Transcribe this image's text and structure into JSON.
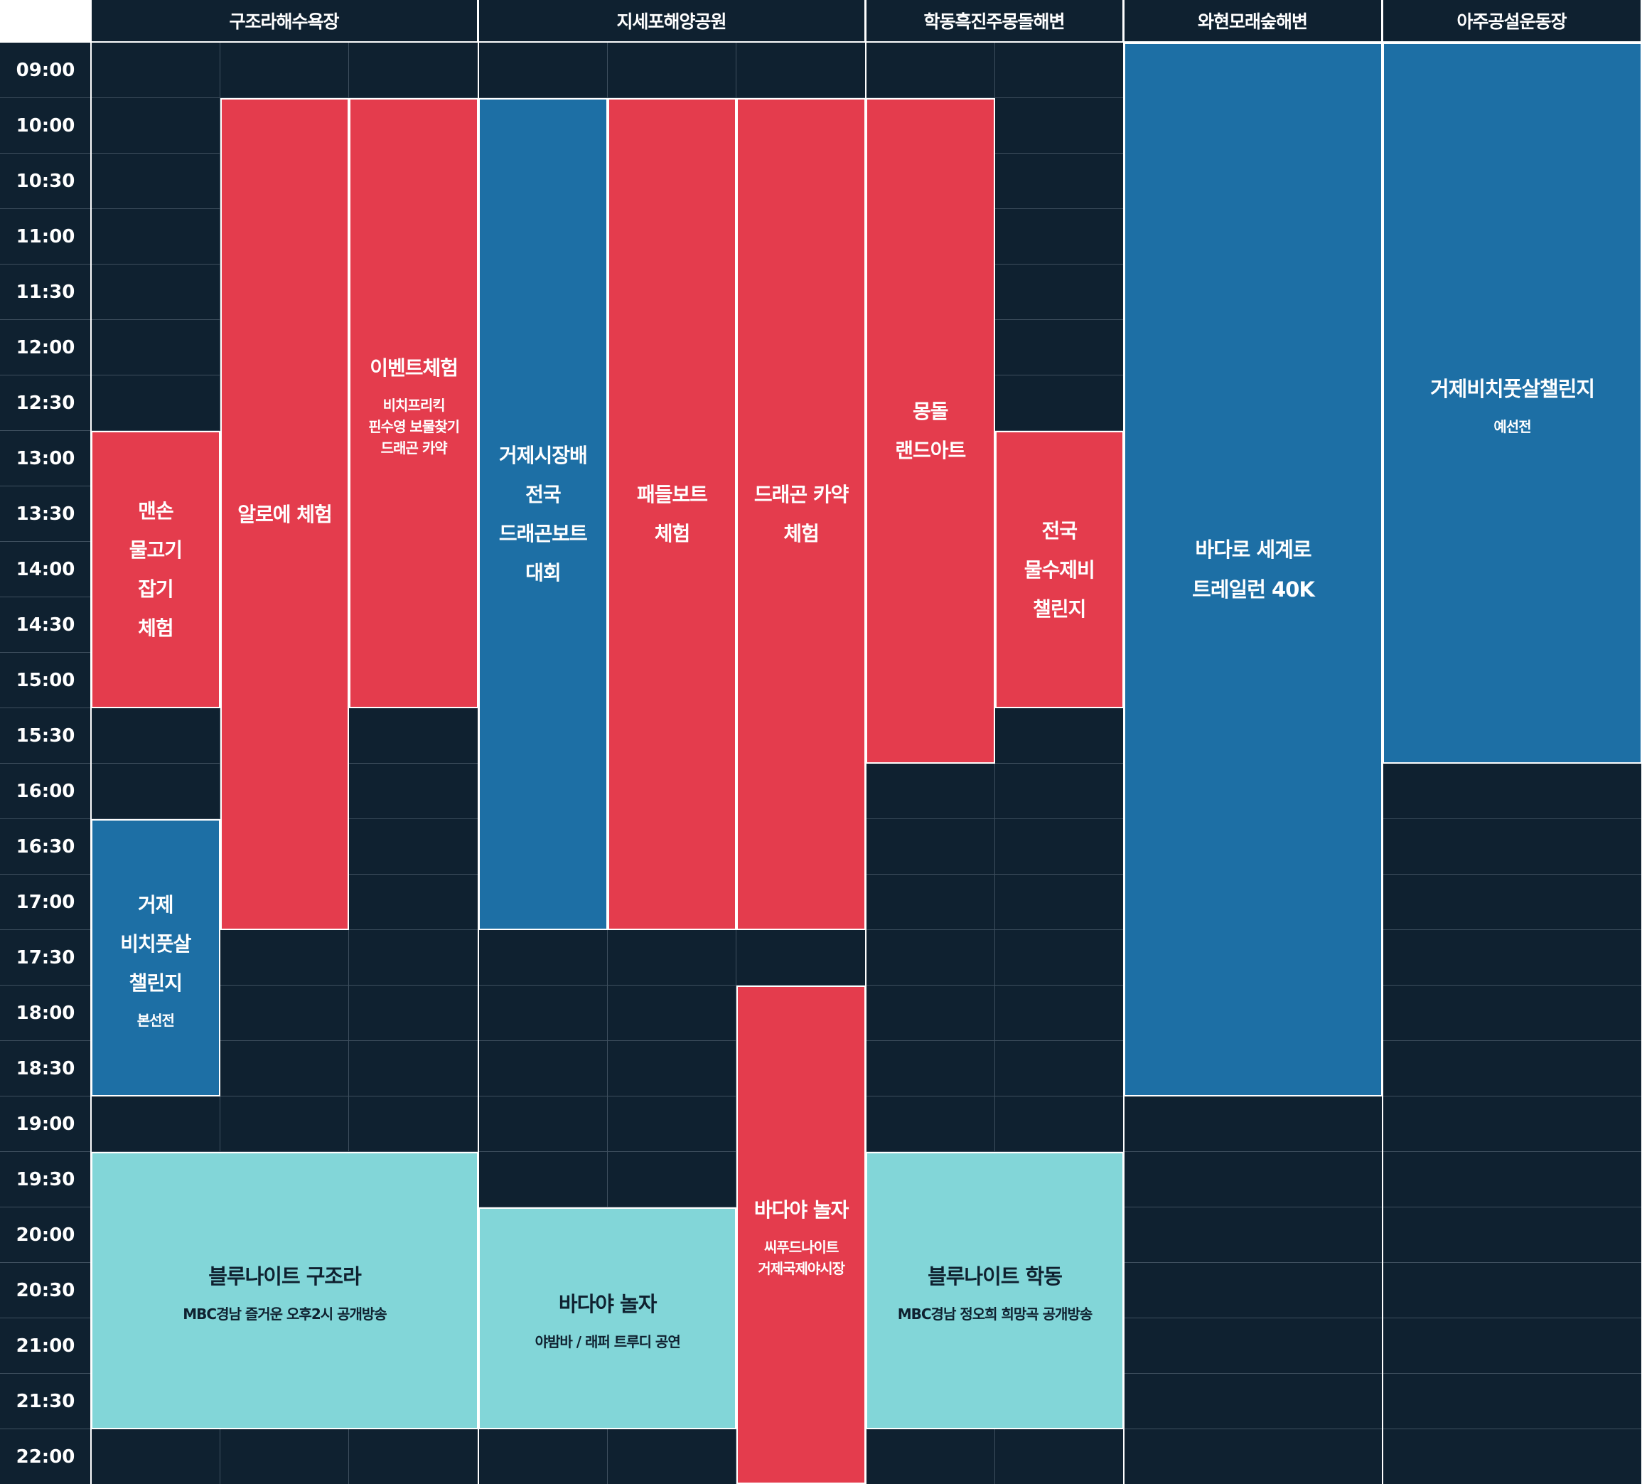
{
  "venues": [
    {
      "id": "v1",
      "name": "구조라해수욕장"
    },
    {
      "id": "v2",
      "name": "지세포해양공원"
    },
    {
      "id": "v3",
      "name": "학동흑진주몽돌해변"
    },
    {
      "id": "v4",
      "name": "와현모래숲해변"
    },
    {
      "id": "v5",
      "name": "아주공설운동장"
    }
  ],
  "times": [
    "09:00",
    "10:00",
    "10:30",
    "11:00",
    "11:30",
    "12:00",
    "12:30",
    "13:00",
    "13:30",
    "14:00",
    "14:30",
    "15:00",
    "15:30",
    "16:00",
    "16:30",
    "17:00",
    "17:30",
    "18:00",
    "18:30",
    "19:00",
    "19:30",
    "20:00",
    "20:30",
    "21:00",
    "21:30",
    "22:00"
  ],
  "events": [
    {
      "id": "e1",
      "title": "맨손\n물고기\n잡기\n체험",
      "subtitle": "",
      "color": "red",
      "venue": "구조라해수욕장",
      "start": "13:00",
      "end": "15:30"
    },
    {
      "id": "e2",
      "title": "알로에 체험",
      "subtitle": "",
      "color": "red",
      "venue": "구조라해수욕장",
      "start": "10:00",
      "end": "17:30"
    },
    {
      "id": "e3",
      "title": "이벤트체험",
      "subtitle": "비치프리킥\n핀수영 보물찾기\n드래곤 카약",
      "color": "red",
      "venue": "구조라해수욕장",
      "start": "10:00",
      "end": "15:30"
    },
    {
      "id": "e4",
      "title": "거제\n비치풋살\n챌린지",
      "subtitle": "본선전",
      "color": "blue",
      "venue": "구조라해수욕장",
      "start": "16:30",
      "end": "19:00"
    },
    {
      "id": "e5",
      "title": "블루나이트 구조라",
      "subtitle": "MBC경남 즐거운 오후2시 공개방송",
      "color": "cyan",
      "venue": "구조라해수욕장",
      "start": "19:30",
      "end": "22:00"
    },
    {
      "id": "e6",
      "title": "거제시장배\n전국\n드래곤보트\n대회",
      "subtitle": "",
      "color": "blue",
      "venue": "지세포해양공원",
      "start": "10:00",
      "end": "17:30"
    },
    {
      "id": "e7",
      "title": "패들보트\n체험",
      "subtitle": "",
      "color": "red",
      "venue": "지세포해양공원",
      "start": "10:00",
      "end": "17:30"
    },
    {
      "id": "e8",
      "title": "드래곤 카약\n체험",
      "subtitle": "",
      "color": "red",
      "venue": "지세포해양공원",
      "start": "10:00",
      "end": "17:30"
    },
    {
      "id": "e9",
      "title": "바다야 놀자",
      "subtitle": "야밤바 / 래퍼 트루디 공연",
      "color": "cyan",
      "venue": "지세포해양공원",
      "start": "20:00",
      "end": "22:00"
    },
    {
      "id": "e10",
      "title": "바다야 놀자",
      "subtitle": "씨푸드나이트\n거제국제야시장",
      "color": "red",
      "venue": "지세포해양공원",
      "start": "18:00",
      "end": "22:30"
    },
    {
      "id": "e11",
      "title": "몽돌\n랜드아트",
      "subtitle": "",
      "color": "red",
      "venue": "학동흑진주몽돌해변",
      "start": "10:00",
      "end": "16:00"
    },
    {
      "id": "e12",
      "title": "전국\n물수제비\n챌린지",
      "subtitle": "",
      "color": "red",
      "venue": "학동흑진주몽돌해변",
      "start": "13:00",
      "end": "15:30"
    },
    {
      "id": "e13",
      "title": "블루나이트 학동",
      "subtitle": "MBC경남 정오희 희망곡 공개방송",
      "color": "cyan",
      "venue": "학동흑진주몽돌해변",
      "start": "19:30",
      "end": "22:00"
    },
    {
      "id": "e14",
      "title": "바다로 세계로\n트레일런 40K",
      "subtitle": "",
      "color": "blue",
      "venue": "와현모래숲해변",
      "start": "09:00",
      "end": "19:00"
    },
    {
      "id": "e15",
      "title": "거제비치풋살챌린지",
      "subtitle": "예선전",
      "color": "blue",
      "venue": "아주공설운동장",
      "start": "09:00",
      "end": "16:00"
    }
  ],
  "colors": {
    "background": "#0f2130",
    "red": "#e43c4d",
    "blue": "#1d6fa5",
    "cyan": "#82d6d8",
    "grid_line": "#3e4f5e",
    "border": "#ffffff"
  }
}
